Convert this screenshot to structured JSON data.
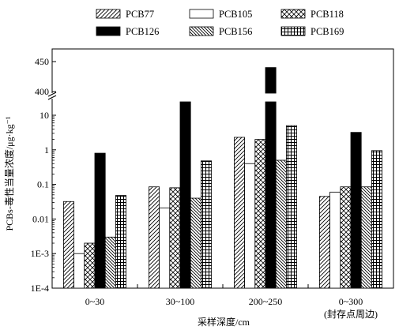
{
  "chart_data": {
    "type": "bar",
    "y_scale": "log",
    "y_axis_break": true,
    "ylim_lower": [
      0.0001,
      10
    ],
    "ylim_upper": [
      400,
      450
    ],
    "ylabel": "PCBs-毒性当量浓度/μg·kg⁻¹",
    "xlabel": "采样深度/cm",
    "categories": [
      {
        "line1": "0~30",
        "line2": ""
      },
      {
        "line1": "30~100",
        "line2": ""
      },
      {
        "line1": "200~250",
        "line2": ""
      },
      {
        "line1": "0~300",
        "line2": "(封存点周边)"
      }
    ],
    "y_ticks": [
      {
        "label": "1E-4",
        "value": 0.0001
      },
      {
        "label": "1E-3",
        "value": 0.001
      },
      {
        "label": "0.01",
        "value": 0.01
      },
      {
        "label": "0.1",
        "value": 0.1
      },
      {
        "label": "1",
        "value": 1
      },
      {
        "label": "10",
        "value": 10
      }
    ],
    "y_ticks_upper": [
      {
        "label": "400",
        "value": 400
      },
      {
        "label": "450",
        "value": 450
      }
    ],
    "series": [
      {
        "name": "PCB77",
        "pattern": "diag",
        "values": [
          0.032,
          0.085,
          2.3,
          0.045
        ]
      },
      {
        "name": "PCB105",
        "pattern": "white",
        "values": [
          0.001,
          0.021,
          0.4,
          0.06
        ]
      },
      {
        "name": "PCB118",
        "pattern": "cross",
        "values": [
          0.002,
          0.08,
          2.0,
          0.085
        ]
      },
      {
        "name": "PCB126",
        "pattern": "black",
        "values": [
          0.8,
          28,
          440,
          3.2
        ]
      },
      {
        "name": "PCB156",
        "pattern": "back",
        "values": [
          0.003,
          0.04,
          0.5,
          0.085
        ]
      },
      {
        "name": "PCB169",
        "pattern": "grid",
        "values": [
          0.048,
          0.48,
          5.0,
          0.95
        ]
      }
    ],
    "legend_position": "top",
    "grid": false
  }
}
